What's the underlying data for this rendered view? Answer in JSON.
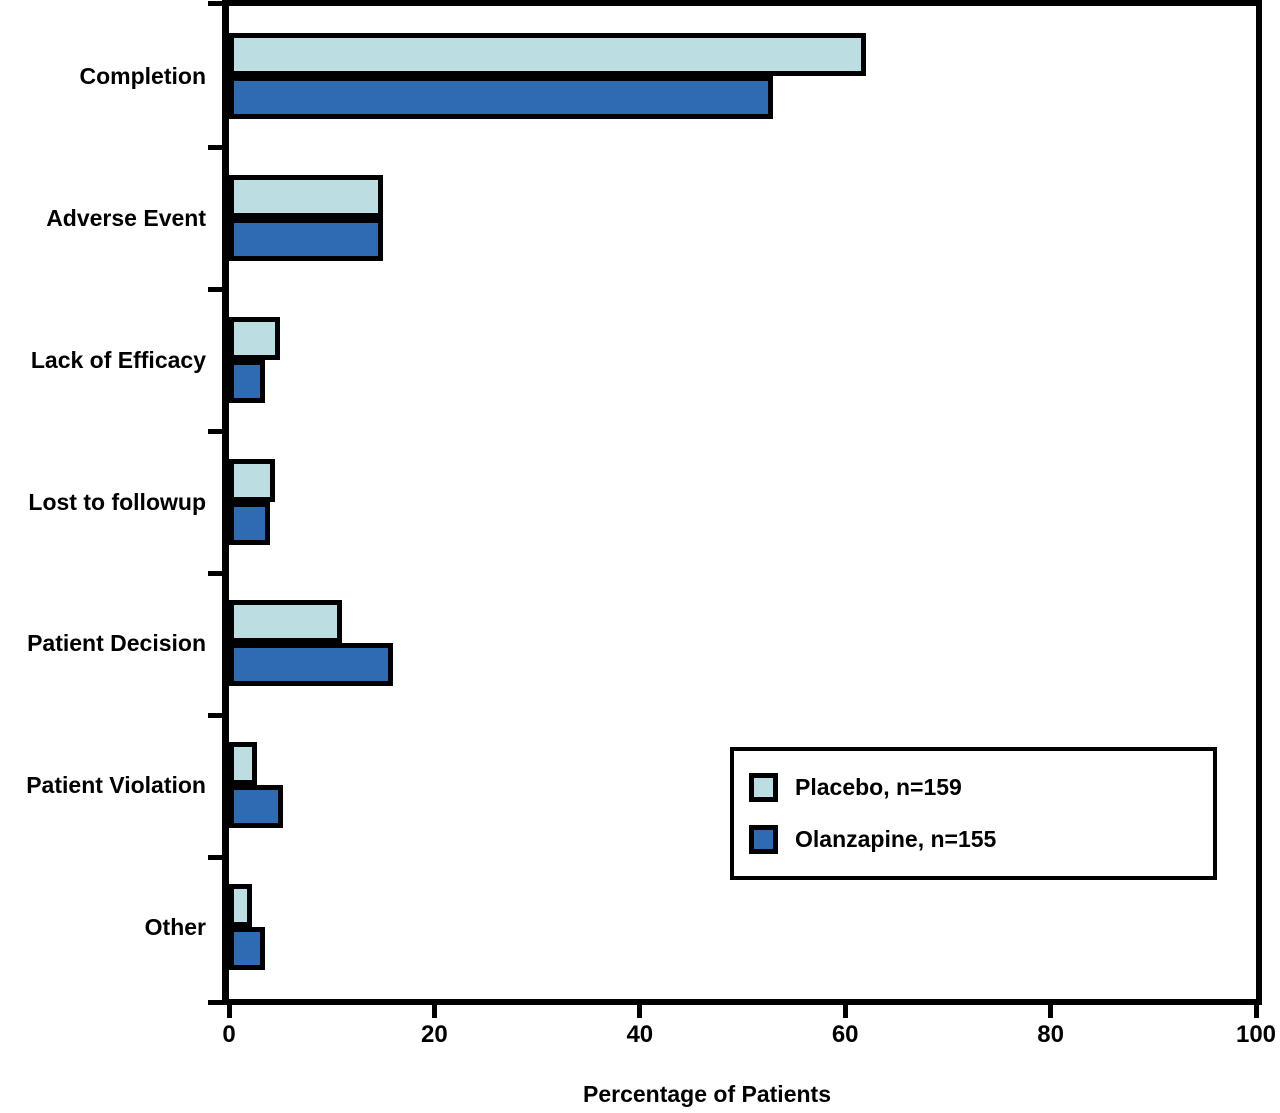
{
  "chart_data": {
    "type": "bar",
    "orientation": "horizontal",
    "title": "",
    "xlabel": "Percentage of Patients",
    "ylabel": "",
    "xlim": [
      0,
      100
    ],
    "xticks": [
      0,
      20,
      40,
      60,
      80,
      100
    ],
    "grid": false,
    "legend_position": "lower-right",
    "bar_border_color": "#000000",
    "categories": [
      "Completion",
      "Adverse Event",
      "Lack of Efficacy",
      "Lost to followup",
      "Patient Decision",
      "Patient Violation",
      "Other"
    ],
    "series": [
      {
        "name": "Placebo, n=159",
        "color": "#BCDDE1",
        "values": [
          62,
          15,
          5.0,
          4.5,
          11,
          2.7,
          2.2
        ]
      },
      {
        "name": "Olanzapine, n=155",
        "color": "#2F6BB3",
        "values": [
          53,
          15,
          3.5,
          4.0,
          16,
          5.3,
          3.5
        ]
      }
    ]
  }
}
